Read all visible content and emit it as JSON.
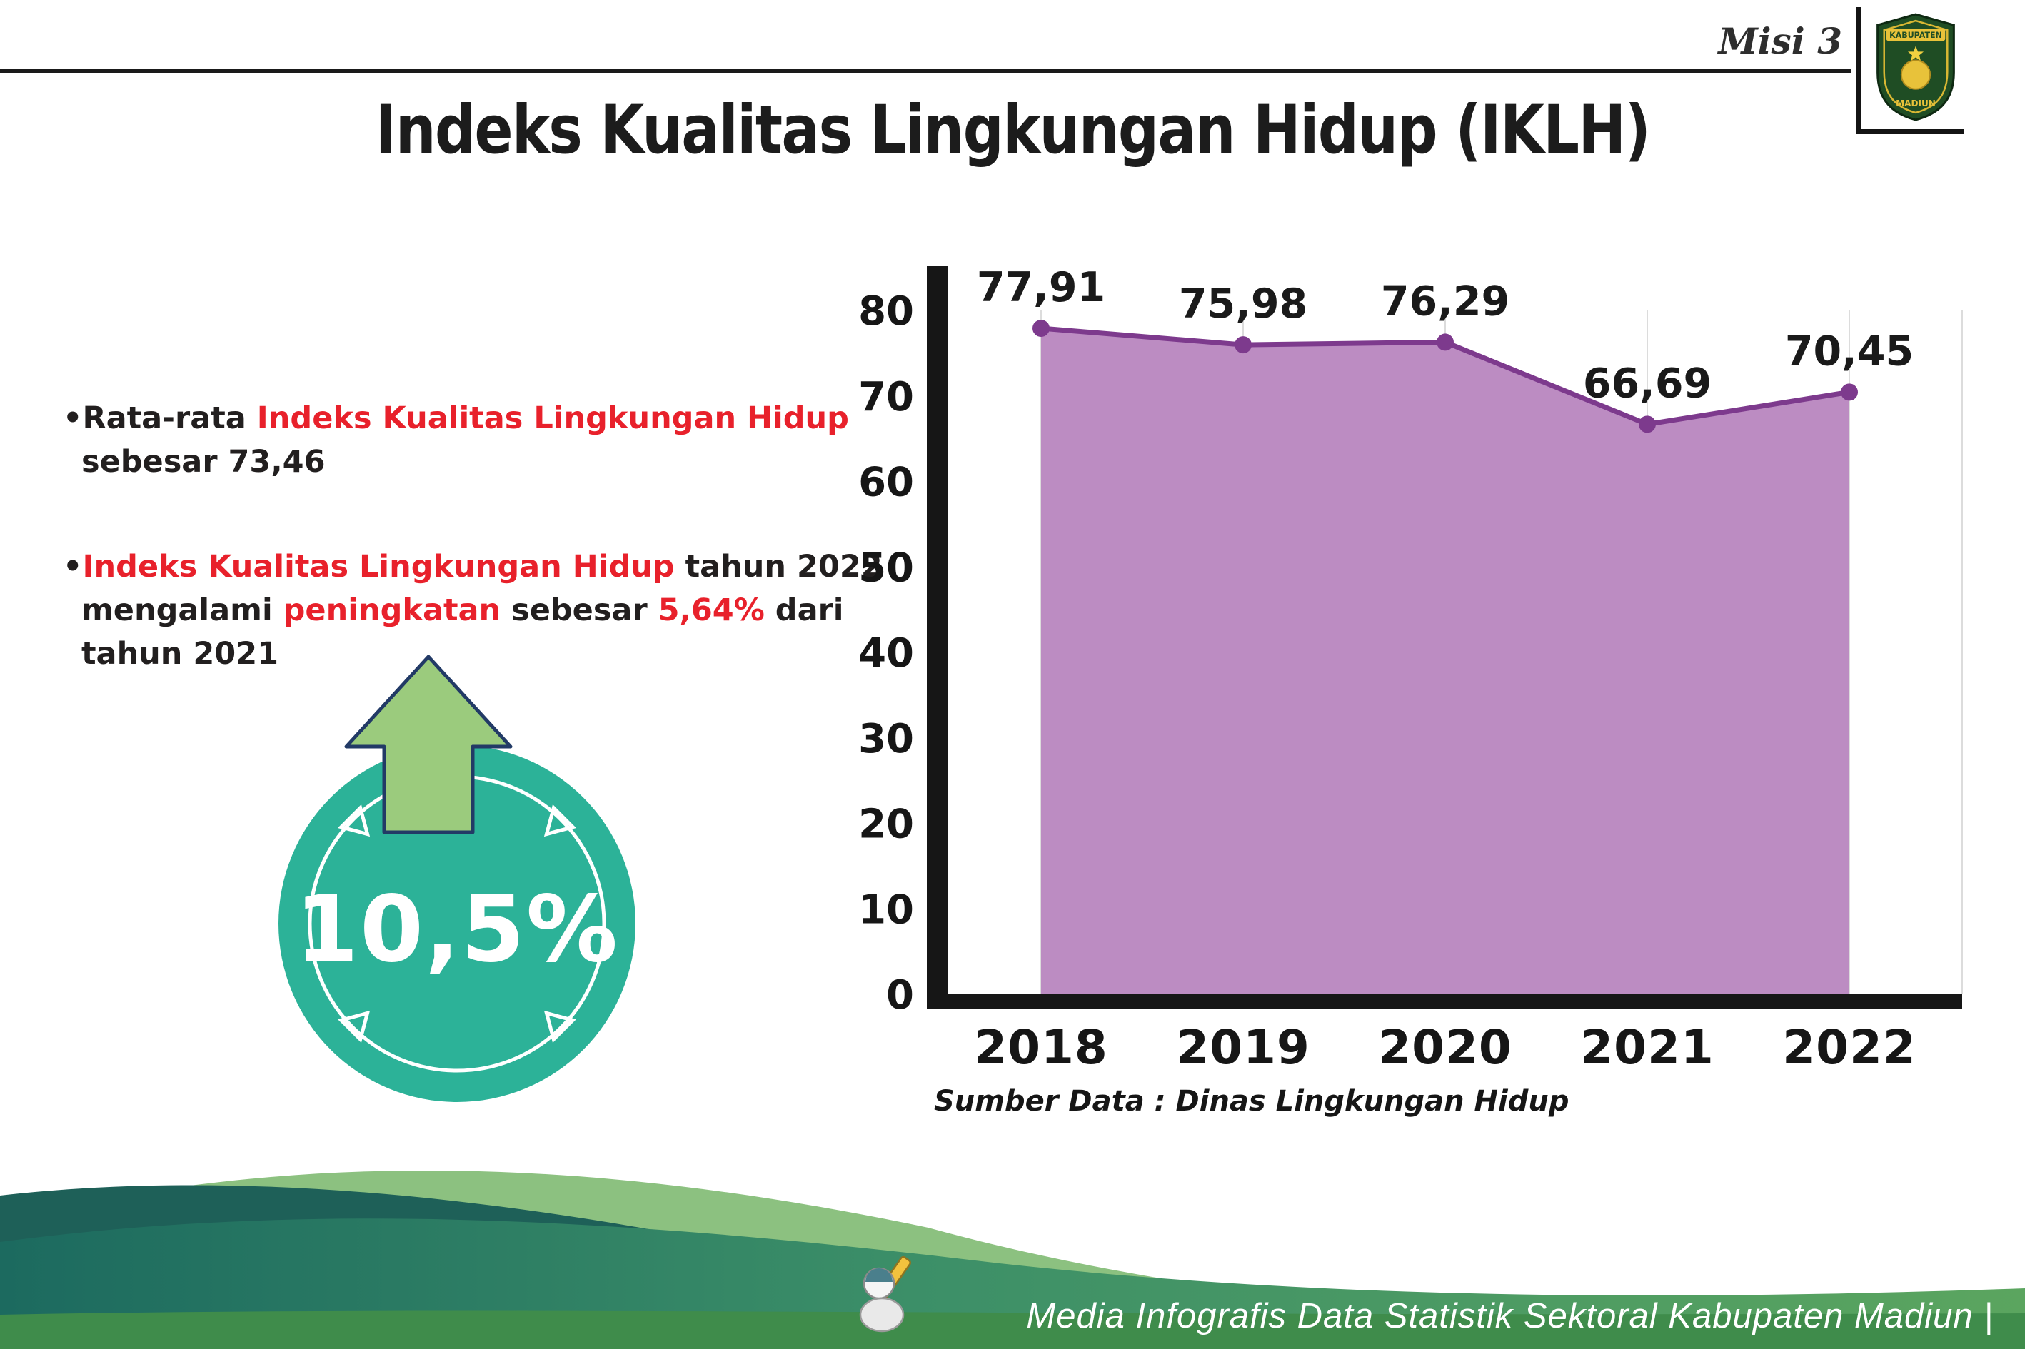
{
  "header": {
    "misi": "Misi 3",
    "title": "Indeks Kualitas Lingkungan Hidup (IKLH)",
    "logo": {
      "top": "KABUPATEN",
      "bottom": "MADIUN"
    }
  },
  "bullets": {
    "marker": "•",
    "b1": {
      "pre": "Rata-rata ",
      "red": "Indeks Kualitas Lingkungan Hidup",
      "post": " sebesar 73,46"
    },
    "b2": {
      "red1": "Indeks Kualitas Lingkungan Hidup",
      "mid1": " tahun 2022 mengalami ",
      "red2": "peningkatan",
      "mid2": " sebesar ",
      "red3": "5,64%",
      "post": " dari tahun 2021"
    }
  },
  "badge": {
    "value": "10,5%"
  },
  "chart_data": {
    "type": "area",
    "title": "",
    "categories": [
      "2018",
      "2019",
      "2020",
      "2021",
      "2022"
    ],
    "values": [
      77.91,
      75.98,
      76.29,
      66.69,
      70.45
    ],
    "point_labels": [
      "77,91",
      "75,98",
      "76,29",
      "66,69",
      "70,45"
    ],
    "ylim": [
      0,
      80
    ],
    "yticks": [
      0,
      10,
      20,
      30,
      40,
      50,
      60,
      70,
      80
    ],
    "grid": "vertical-light",
    "legend": "none",
    "fill_color": "#bc8cc2",
    "line_color": "#7d3a8d",
    "source": "Sumber Data : Dinas Lingkungan Hidup"
  },
  "footer": {
    "credit": "Media Infografis Data Statistik Sektoral Kabupaten Madiun |"
  },
  "colors": {
    "accent_red": "#e8212b",
    "badge_teal": "#2cb298",
    "arrow_green": "#9bcb7d",
    "wave_dark_teal": "#1e6058",
    "wave_light_green": "#8cc180",
    "wave_bottom_green": "#3f8c4b"
  }
}
